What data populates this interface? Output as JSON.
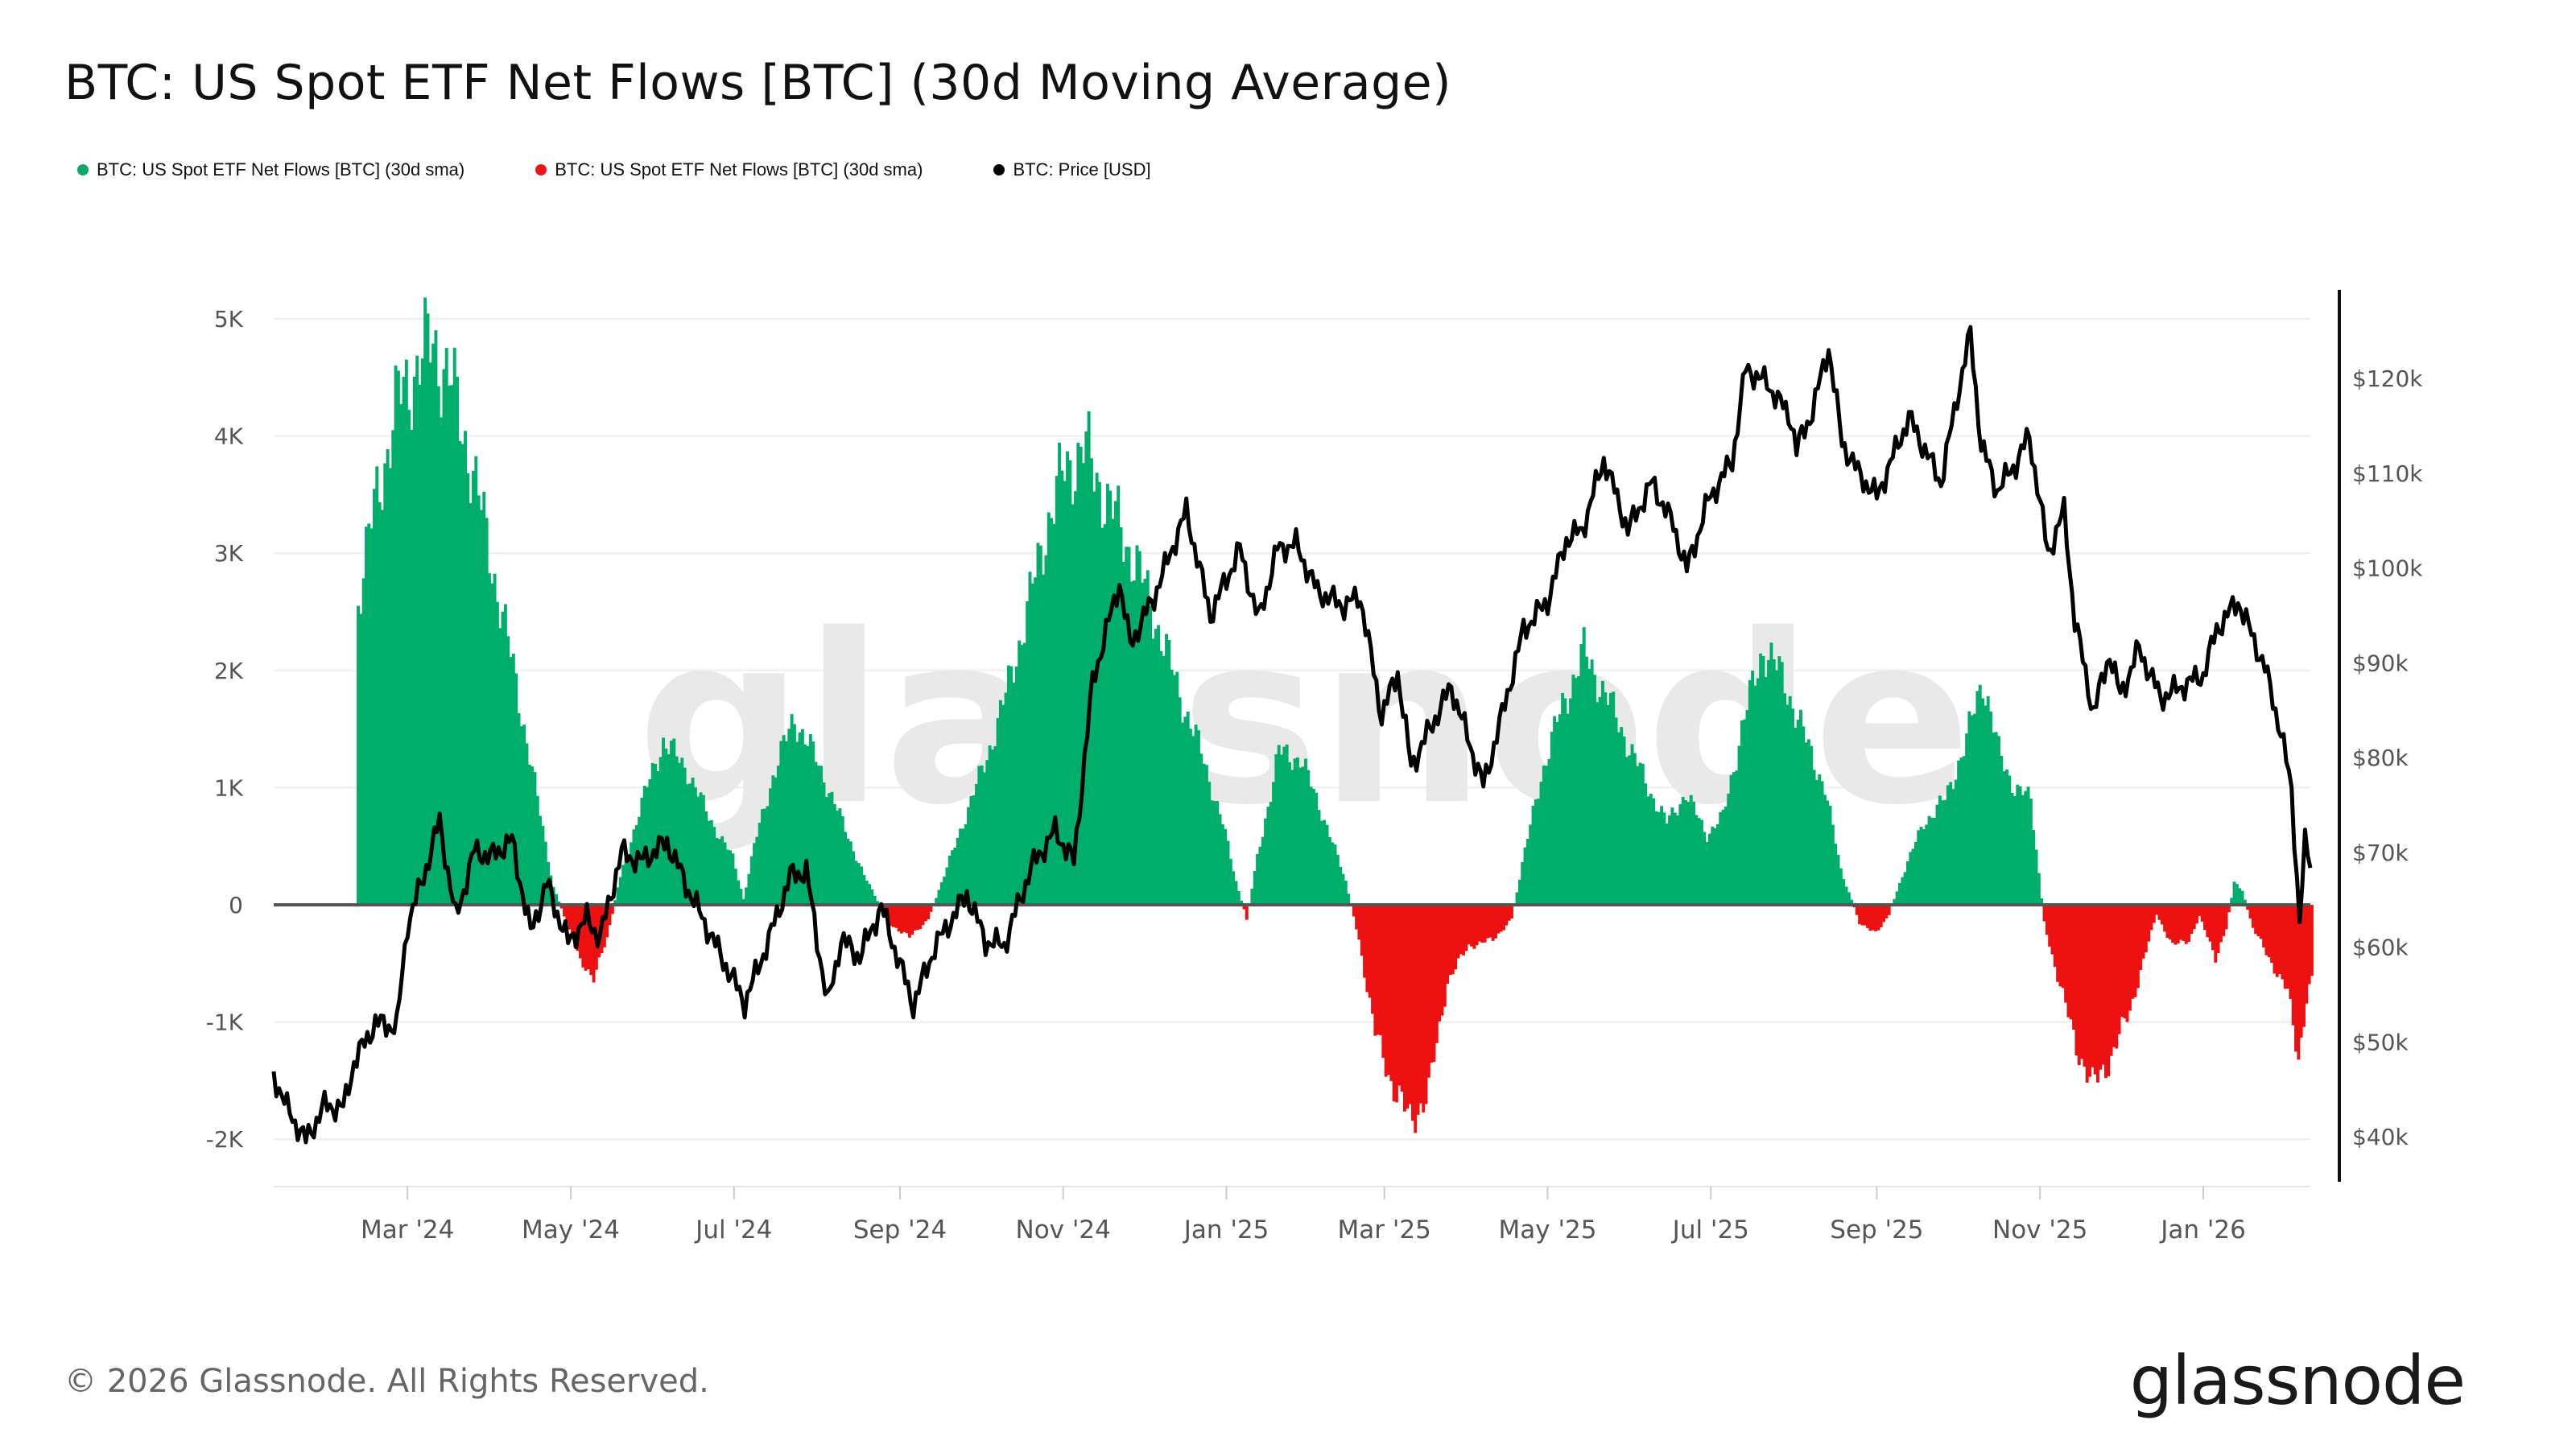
{
  "title": "BTC: US Spot ETF Net Flows [BTC] (30d Moving Average)",
  "legend": [
    {
      "label": "BTC: US Spot ETF Net Flows [BTC] (30d sma)",
      "color": "#0aa86a"
    },
    {
      "label": "BTC: US Spot ETF Net Flows [BTC] (30d sma)",
      "color": "#e8161b"
    },
    {
      "label": "BTC: Price [USD]",
      "color": "#000000"
    }
  ],
  "watermark": "glassnode",
  "footer": {
    "copyright": "© 2026 Glassnode. All Rights Reserved.",
    "brand": "glassnode"
  },
  "colors": {
    "positive": "#00ae6b",
    "negative": "#ee1111",
    "price": "#000000",
    "grid": "#eeeeee"
  },
  "chart_data": {
    "type": "bar+line",
    "title": "BTC: US Spot ETF Net Flows [BTC] (30d Moving Average)",
    "x_range": [
      "2024-01-11",
      "2026-02-10"
    ],
    "x_ticks": [
      "Mar '24",
      "May '24",
      "Jul '24",
      "Sep '24",
      "Nov '24",
      "Jan '25",
      "Mar '25",
      "May '25",
      "Jul '25",
      "Sep '25",
      "Nov '25",
      "Jan '26"
    ],
    "x_tick_dates": [
      "2024-03-01",
      "2024-05-01",
      "2024-07-01",
      "2024-09-01",
      "2024-11-01",
      "2025-01-01",
      "2025-03-01",
      "2025-05-01",
      "2025-07-01",
      "2025-09-01",
      "2025-11-01",
      "2026-01-01"
    ],
    "y_left": {
      "ticks": [
        "5K",
        "4K",
        "3K",
        "2K",
        "1K",
        "0",
        "-1K",
        "-2K"
      ],
      "tick_values": [
        5000,
        4000,
        3000,
        2000,
        1000,
        0,
        -1000,
        -2000
      ],
      "range": [
        -2400,
        5300
      ]
    },
    "y_right": {
      "ticks": [
        "$120k",
        "$110k",
        "$100k",
        "$90k",
        "$80k",
        "$70k",
        "$60k",
        "$50k",
        "$40k"
      ],
      "tick_values": [
        120000,
        110000,
        100000,
        90000,
        80000,
        70000,
        60000,
        50000,
        40000
      ],
      "range": [
        35000,
        128500
      ]
    },
    "series": [
      {
        "name": "BTC: US Spot ETF Net Flows [BTC] (30d sma)",
        "kind": "bar",
        "points": [
          [
            "2024-01-11",
            0
          ],
          [
            "2024-02-10",
            0
          ],
          [
            "2024-02-11",
            2600
          ],
          [
            "2024-02-18",
            3500
          ],
          [
            "2024-02-26",
            4300
          ],
          [
            "2024-03-04",
            4600
          ],
          [
            "2024-03-10",
            4800
          ],
          [
            "2024-03-16",
            4500
          ],
          [
            "2024-03-24",
            3800
          ],
          [
            "2024-04-02",
            2800
          ],
          [
            "2024-04-10",
            1900
          ],
          [
            "2024-04-18",
            900
          ],
          [
            "2024-04-24",
            150
          ],
          [
            "2024-04-29",
            -150
          ],
          [
            "2024-05-04",
            -500
          ],
          [
            "2024-05-09",
            -600
          ],
          [
            "2024-05-14",
            -300
          ],
          [
            "2024-05-18",
            150
          ],
          [
            "2024-05-26",
            800
          ],
          [
            "2024-06-04",
            1400
          ],
          [
            "2024-06-13",
            1150
          ],
          [
            "2024-06-21",
            750
          ],
          [
            "2024-06-30",
            400
          ],
          [
            "2024-07-04",
            50
          ],
          [
            "2024-07-08",
            500
          ],
          [
            "2024-07-15",
            1100
          ],
          [
            "2024-07-23",
            1600
          ],
          [
            "2024-08-01",
            1200
          ],
          [
            "2024-08-10",
            700
          ],
          [
            "2024-08-18",
            250
          ],
          [
            "2024-08-22",
            80
          ],
          [
            "2024-08-27",
            -150
          ],
          [
            "2024-09-04",
            -280
          ],
          [
            "2024-09-11",
            -120
          ],
          [
            "2024-09-17",
            250
          ],
          [
            "2024-09-24",
            700
          ],
          [
            "2024-10-02",
            1200
          ],
          [
            "2024-10-09",
            1700
          ],
          [
            "2024-10-18",
            2500
          ],
          [
            "2024-10-26",
            3300
          ],
          [
            "2024-11-01",
            3700
          ],
          [
            "2024-11-08",
            3900
          ],
          [
            "2024-11-14",
            3600
          ],
          [
            "2024-11-20",
            3300
          ],
          [
            "2024-11-28",
            2900
          ],
          [
            "2024-12-07",
            2300
          ],
          [
            "2024-12-14",
            1800
          ],
          [
            "2024-12-22",
            1300
          ],
          [
            "2024-12-30",
            700
          ],
          [
            "2025-01-04",
            200
          ],
          [
            "2025-01-08",
            -120
          ],
          [
            "2025-01-12",
            400
          ],
          [
            "2025-01-20",
            1300
          ],
          [
            "2025-01-28",
            1250
          ],
          [
            "2025-02-05",
            800
          ],
          [
            "2025-02-14",
            200
          ],
          [
            "2025-02-19",
            -300
          ],
          [
            "2025-02-25",
            -1100
          ],
          [
            "2025-03-03",
            -1500
          ],
          [
            "2025-03-10",
            -1850
          ],
          [
            "2025-03-17",
            -1600
          ],
          [
            "2025-03-24",
            -650
          ],
          [
            "2025-04-01",
            -350
          ],
          [
            "2025-04-10",
            -300
          ],
          [
            "2025-04-17",
            -120
          ],
          [
            "2025-04-21",
            350
          ],
          [
            "2025-04-28",
            1100
          ],
          [
            "2025-05-06",
            1700
          ],
          [
            "2025-05-14",
            2150
          ],
          [
            "2025-05-22",
            1800
          ],
          [
            "2025-05-30",
            1400
          ],
          [
            "2025-06-07",
            1000
          ],
          [
            "2025-06-14",
            700
          ],
          [
            "2025-06-21",
            950
          ],
          [
            "2025-06-29",
            600
          ],
          [
            "2025-07-05",
            750
          ],
          [
            "2025-07-12",
            1500
          ],
          [
            "2025-07-20",
            2200
          ],
          [
            "2025-07-28",
            1900
          ],
          [
            "2025-08-05",
            1400
          ],
          [
            "2025-08-12",
            1000
          ],
          [
            "2025-08-18",
            300
          ],
          [
            "2025-08-25",
            -150
          ],
          [
            "2025-08-31",
            -250
          ],
          [
            "2025-09-05",
            -80
          ],
          [
            "2025-09-10",
            250
          ],
          [
            "2025-09-18",
            700
          ],
          [
            "2025-09-26",
            900
          ],
          [
            "2025-10-04",
            1400
          ],
          [
            "2025-10-10",
            1950
          ],
          [
            "2025-10-16",
            1300
          ],
          [
            "2025-10-22",
            1000
          ],
          [
            "2025-10-28",
            900
          ],
          [
            "2025-11-02",
            -150
          ],
          [
            "2025-11-08",
            -700
          ],
          [
            "2025-11-14",
            -1200
          ],
          [
            "2025-11-20",
            -1550
          ],
          [
            "2025-11-27",
            -1300
          ],
          [
            "2025-12-04",
            -900
          ],
          [
            "2025-12-10",
            -400
          ],
          [
            "2025-12-14",
            -80
          ],
          [
            "2025-12-20",
            -350
          ],
          [
            "2025-12-26",
            -300
          ],
          [
            "2025-12-30",
            -100
          ],
          [
            "2026-01-05",
            -450
          ],
          [
            "2026-01-09",
            -200
          ],
          [
            "2026-01-12",
            200
          ],
          [
            "2026-01-15",
            120
          ],
          [
            "2026-01-19",
            -200
          ],
          [
            "2026-01-25",
            -450
          ],
          [
            "2026-02-01",
            -750
          ],
          [
            "2026-02-05",
            -1300
          ],
          [
            "2026-02-08",
            -800
          ],
          [
            "2026-02-10",
            -650
          ]
        ]
      },
      {
        "name": "BTC: Price [USD]",
        "kind": "line",
        "points": [
          [
            "2024-01-11",
            46500
          ],
          [
            "2024-01-16",
            43000
          ],
          [
            "2024-01-23",
            39600
          ],
          [
            "2024-01-30",
            43300
          ],
          [
            "2024-02-06",
            43000
          ],
          [
            "2024-02-10",
            47800
          ],
          [
            "2024-02-18",
            52000
          ],
          [
            "2024-02-26",
            51600
          ],
          [
            "2024-03-01",
            62500
          ],
          [
            "2024-03-06",
            66500
          ],
          [
            "2024-03-13",
            73300
          ],
          [
            "2024-03-19",
            63000
          ],
          [
            "2024-03-26",
            70200
          ],
          [
            "2024-04-01",
            69500
          ],
          [
            "2024-04-09",
            71300
          ],
          [
            "2024-04-16",
            61500
          ],
          [
            "2024-04-22",
            66700
          ],
          [
            "2024-04-30",
            60500
          ],
          [
            "2024-05-07",
            63000
          ],
          [
            "2024-05-12",
            61000
          ],
          [
            "2024-05-20",
            70000
          ],
          [
            "2024-05-27",
            69000
          ],
          [
            "2024-06-06",
            71100
          ],
          [
            "2024-06-14",
            66000
          ],
          [
            "2024-06-24",
            60300
          ],
          [
            "2024-07-05",
            54100
          ],
          [
            "2024-07-14",
            60800
          ],
          [
            "2024-07-22",
            67500
          ],
          [
            "2024-07-28",
            68000
          ],
          [
            "2024-08-05",
            53900
          ],
          [
            "2024-08-10",
            60800
          ],
          [
            "2024-08-17",
            59000
          ],
          [
            "2024-08-25",
            64200
          ],
          [
            "2024-09-06",
            53900
          ],
          [
            "2024-09-14",
            60000
          ],
          [
            "2024-09-26",
            65600
          ],
          [
            "2024-10-03",
            60600
          ],
          [
            "2024-10-10",
            60200
          ],
          [
            "2024-10-20",
            68400
          ],
          [
            "2024-10-29",
            72300
          ],
          [
            "2024-11-05",
            69000
          ],
          [
            "2024-11-12",
            88000
          ],
          [
            "2024-11-22",
            98500
          ],
          [
            "2024-11-26",
            91900
          ],
          [
            "2024-12-05",
            97000
          ],
          [
            "2024-12-17",
            106000
          ],
          [
            "2024-12-26",
            95000
          ],
          [
            "2025-01-06",
            102000
          ],
          [
            "2025-01-13",
            94500
          ],
          [
            "2025-01-20",
            102000
          ],
          [
            "2025-01-27",
            102500
          ],
          [
            "2025-02-04",
            97500
          ],
          [
            "2025-02-14",
            96000
          ],
          [
            "2025-02-20",
            97000
          ],
          [
            "2025-02-28",
            84400
          ],
          [
            "2025-03-06",
            89000
          ],
          [
            "2025-03-11",
            79000
          ],
          [
            "2025-03-18",
            83000
          ],
          [
            "2025-03-26",
            87500
          ],
          [
            "2025-04-07",
            77000
          ],
          [
            "2025-04-14",
            84500
          ],
          [
            "2025-04-22",
            93500
          ],
          [
            "2025-05-01",
            96500
          ],
          [
            "2025-05-08",
            103000
          ],
          [
            "2025-05-14",
            104000
          ],
          [
            "2025-05-22",
            111500
          ],
          [
            "2025-05-31",
            104000
          ],
          [
            "2025-06-09",
            109000
          ],
          [
            "2025-06-17",
            104500
          ],
          [
            "2025-06-22",
            99800
          ],
          [
            "2025-06-30",
            107100
          ],
          [
            "2025-07-09",
            111300
          ],
          [
            "2025-07-14",
            121000
          ],
          [
            "2025-07-22",
            119500
          ],
          [
            "2025-07-31",
            115700
          ],
          [
            "2025-08-02",
            112500
          ],
          [
            "2025-08-08",
            116600
          ],
          [
            "2025-08-14",
            123300
          ],
          [
            "2025-08-19",
            113300
          ],
          [
            "2025-08-25",
            110100
          ],
          [
            "2025-09-01",
            107500
          ],
          [
            "2025-09-06",
            111000
          ],
          [
            "2025-09-13",
            115900
          ],
          [
            "2025-09-25",
            109000
          ],
          [
            "2025-10-01",
            118000
          ],
          [
            "2025-10-06",
            124700
          ],
          [
            "2025-10-10",
            113000
          ],
          [
            "2025-10-16",
            108200
          ],
          [
            "2025-10-23",
            111000
          ],
          [
            "2025-10-28",
            114000
          ],
          [
            "2025-11-04",
            101500
          ],
          [
            "2025-11-10",
            106000
          ],
          [
            "2025-11-14",
            94500
          ],
          [
            "2025-11-21",
            84700
          ],
          [
            "2025-11-27",
            91000
          ],
          [
            "2025-12-01",
            86500
          ],
          [
            "2025-12-08",
            91500
          ],
          [
            "2025-12-16",
            86300
          ],
          [
            "2025-12-24",
            87500
          ],
          [
            "2026-01-01",
            88700
          ],
          [
            "2026-01-06",
            93500
          ],
          [
            "2026-01-14",
            96500
          ],
          [
            "2026-01-19",
            93000
          ],
          [
            "2026-01-24",
            89500
          ],
          [
            "2026-01-30",
            82700
          ],
          [
            "2026-02-03",
            76500
          ],
          [
            "2026-02-06",
            62700
          ],
          [
            "2026-02-08",
            70800
          ],
          [
            "2026-02-10",
            68800
          ]
        ]
      }
    ],
    "bar_colors": {
      "positive": "#00ae6b",
      "negative": "#ee1111"
    },
    "legend_position": "top-left",
    "grid": true
  }
}
